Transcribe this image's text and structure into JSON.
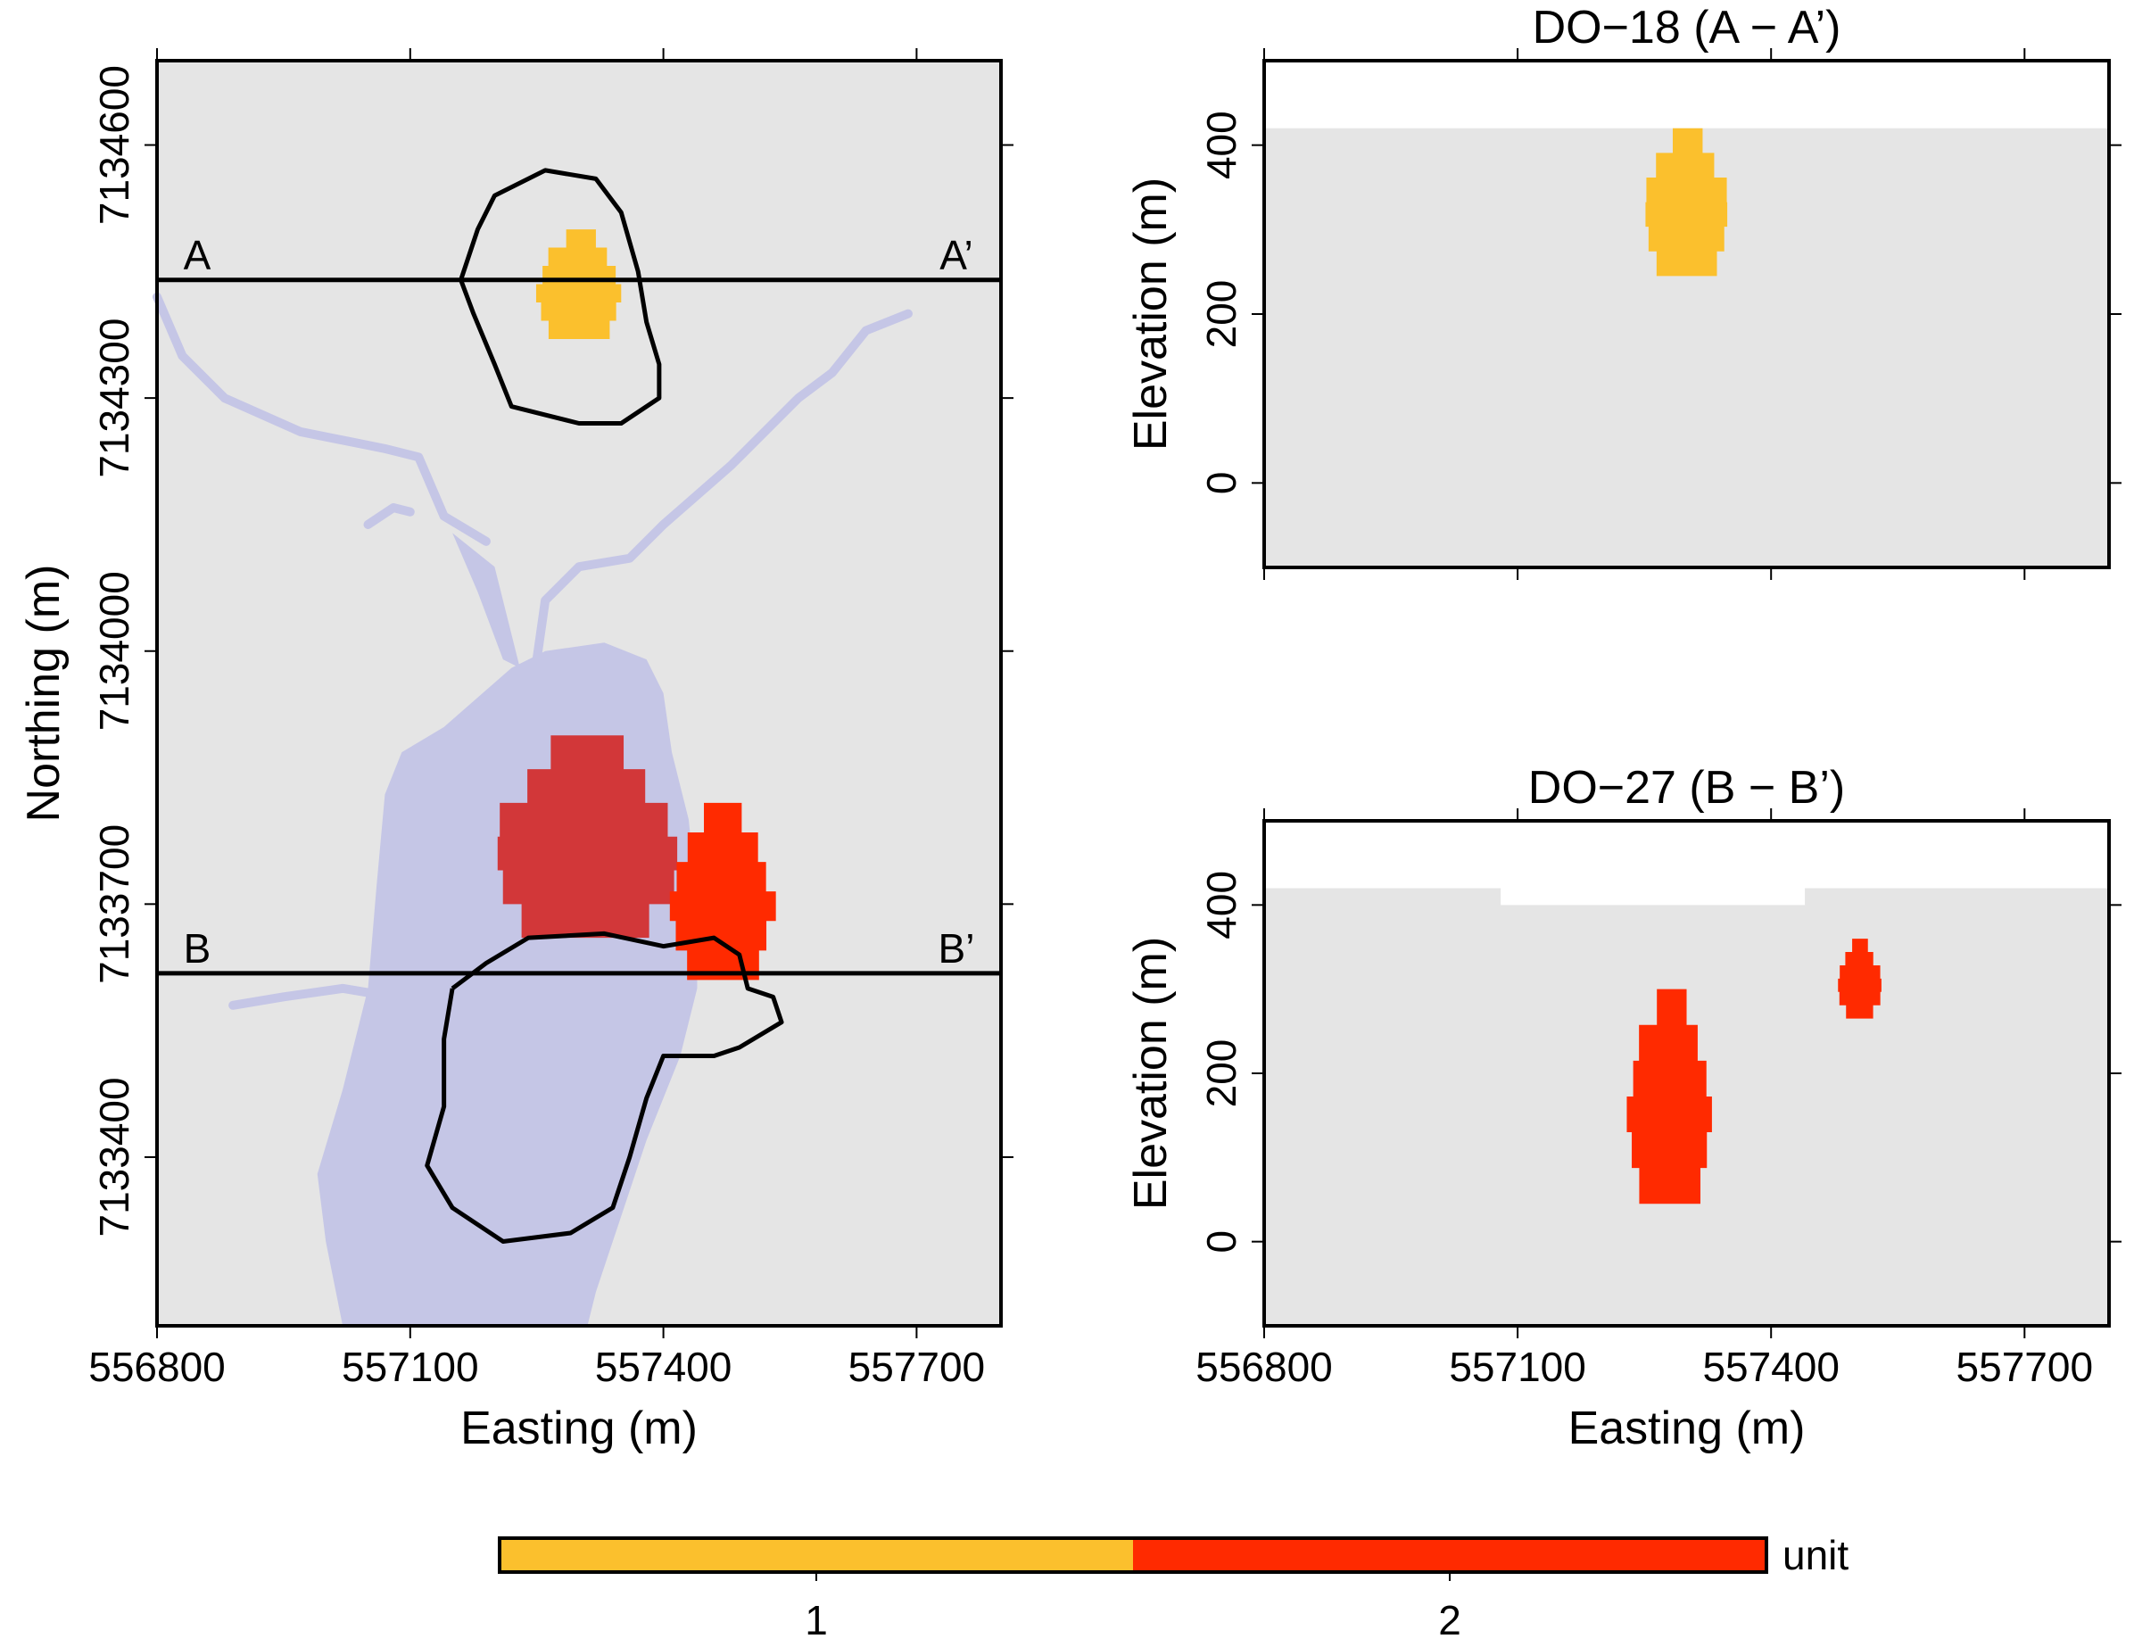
{
  "chart_data": [
    {
      "type": "heatmap",
      "panel": "map",
      "title": "",
      "xlabel": "Easting (m)",
      "ylabel": "Northing (m)",
      "xlim": [
        556800,
        557800
      ],
      "ylim": [
        7133200,
        7134700
      ],
      "x_ticks": [
        556800,
        557100,
        557400,
        557700
      ],
      "y_ticks": [
        7133400,
        7133700,
        7134000,
        7134300,
        7134600
      ],
      "x_tick_labels": [
        "556800",
        "557100",
        "557400",
        "557700"
      ],
      "y_tick_labels": [
        "7133400",
        "7133700",
        "7134000",
        "7134300",
        "7134600"
      ],
      "section_lines": [
        {
          "start_label": "A",
          "end_label": "A’",
          "northing": 7134440
        },
        {
          "start_label": "B",
          "end_label": "B’",
          "northing": 7133618
        }
      ],
      "units": [
        {
          "unit": 1,
          "color": "#FBC02D",
          "extent": {
            "easting": [
              557250,
              557350
            ],
            "northing": [
              7134370,
              7134500
            ]
          }
        },
        {
          "unit": 2,
          "color": "#D32F2F",
          "extent": {
            "easting": [
              557200,
              557420
            ],
            "northing": [
              7133660,
              7133900
            ]
          }
        },
        {
          "unit": 2,
          "color": "#FF2A00",
          "extent": {
            "easting": [
              557410,
              557530
            ],
            "northing": [
              7133610,
              7133820
            ]
          }
        }
      ],
      "water_color": "#C5C6E6",
      "background_color": "#E5E5E5",
      "outline_color": "#000000",
      "grid": false
    },
    {
      "type": "heatmap",
      "panel": "section",
      "title": "DO−18 (A − A’)",
      "xlabel": "",
      "ylabel": "Elevation (m)",
      "xlim": [
        556800,
        557800
      ],
      "ylim": [
        -100,
        500
      ],
      "x_ticks": [
        556800,
        557100,
        557400,
        557700
      ],
      "y_ticks": [
        0,
        200,
        400
      ],
      "y_tick_labels": [
        "0",
        "200",
        "400"
      ],
      "surface_elevation": 420,
      "units": [
        {
          "unit": 1,
          "color": "#FBC02D",
          "extent": {
            "easting": [
              557250,
              557350
            ],
            "elevation": [
              245,
              420
            ]
          }
        }
      ],
      "grid": false
    },
    {
      "type": "heatmap",
      "panel": "section",
      "title": "DO−27 (B − B’)",
      "xlabel": "Easting (m)",
      "ylabel": "Elevation (m)",
      "xlim": [
        556800,
        557800
      ],
      "ylim": [
        -100,
        500
      ],
      "x_ticks": [
        556800,
        557100,
        557400,
        557700
      ],
      "x_tick_labels": [
        "556800",
        "557100",
        "557400",
        "557700"
      ],
      "y_ticks": [
        0,
        200,
        400
      ],
      "y_tick_labels": [
        "0",
        "200",
        "400"
      ],
      "surface_elevation": 420,
      "units": [
        {
          "unit": 2,
          "color": "#FF2A00",
          "extent": {
            "easting": [
              557230,
              557330
            ],
            "elevation": [
              45,
              300
            ]
          }
        },
        {
          "unit": 2,
          "color": "#FF2A00",
          "extent": {
            "easting": [
              557480,
              557530
            ],
            "elevation": [
              265,
              360
            ]
          }
        }
      ],
      "grid": false
    }
  ],
  "legend": {
    "title": "unit",
    "placement": "bottom",
    "entries": [
      {
        "label": "1",
        "color": "#FBC02D"
      },
      {
        "label": "2",
        "color": "#FF2A00"
      }
    ]
  }
}
